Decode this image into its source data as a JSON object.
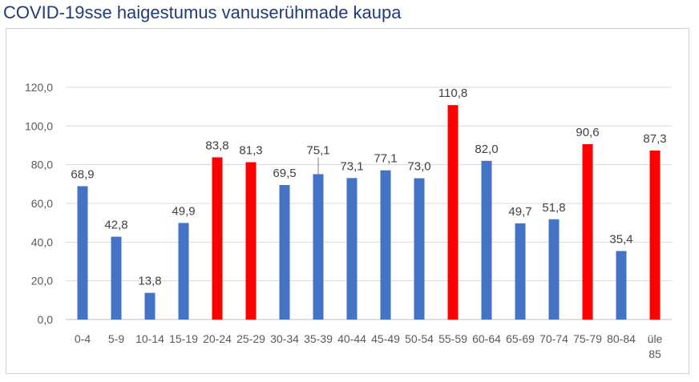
{
  "chart_data": {
    "type": "bar",
    "title": "COVID-19sse haigestumus vanuserühmade kaupa",
    "xlabel": "",
    "ylabel": "",
    "ylim": [
      0,
      120
    ],
    "yticks": [
      "0,0",
      "20,0",
      "40,0",
      "60,0",
      "80,0",
      "100,0",
      "120,0"
    ],
    "grid": true,
    "categories": [
      "0-4",
      "5-9",
      "10-14",
      "15-19",
      "20-24",
      "25-29",
      "30-34",
      "35-39",
      "40-44",
      "45-49",
      "50-54",
      "55-59",
      "60-64",
      "65-69",
      "70-74",
      "75-79",
      "80-84",
      "üle 85"
    ],
    "values": [
      68.9,
      42.8,
      13.8,
      49.9,
      83.8,
      81.3,
      69.5,
      75.1,
      73.1,
      77.1,
      73.0,
      110.8,
      82.0,
      49.7,
      51.8,
      90.6,
      35.4,
      87.3
    ],
    "value_labels": [
      "68,9",
      "42,8",
      "13,8",
      "49,9",
      "83,8",
      "81,3",
      "69,5",
      "75,1",
      "73,1",
      "77,1",
      "73,0",
      "110,8",
      "82,0",
      "49,7",
      "51,8",
      "90,6",
      "35,4",
      "87,3"
    ],
    "highlighted": [
      false,
      false,
      false,
      false,
      true,
      true,
      false,
      false,
      false,
      false,
      false,
      true,
      false,
      false,
      false,
      true,
      false,
      true
    ],
    "colors": {
      "default": "#4472c4",
      "highlight": "#ff0000",
      "title": "#1f3b7a"
    }
  }
}
